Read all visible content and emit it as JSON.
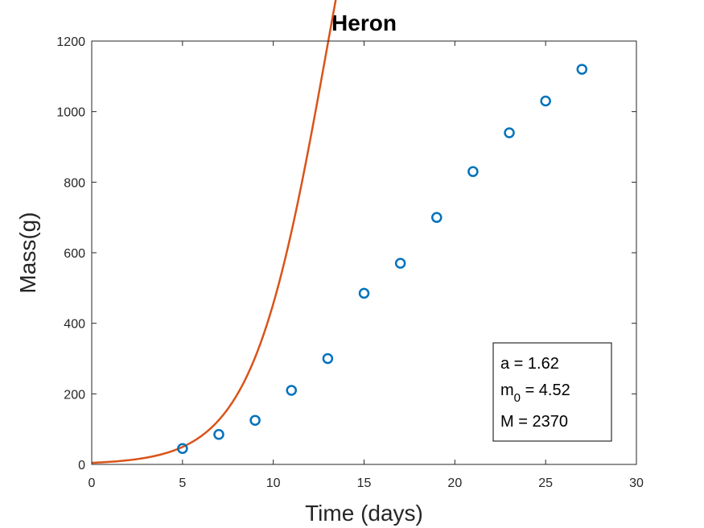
{
  "chart_data": {
    "type": "scatter",
    "title": "Heron",
    "xlabel": "Time (days)",
    "ylabel": "Mass(g)",
    "xlim": [
      0,
      30
    ],
    "ylim": [
      0,
      1200
    ],
    "xticks": [
      "0",
      "5",
      "10",
      "15",
      "20",
      "25",
      "30"
    ],
    "yticks": [
      "0",
      "200",
      "400",
      "600",
      "800",
      "1000",
      "1200"
    ],
    "grid": false,
    "series": [
      {
        "kind": "markers",
        "marker": "circle",
        "color": "#0072BD",
        "x": [
          5,
          7,
          9,
          11,
          13,
          15,
          17,
          19,
          21,
          23,
          25,
          27
        ],
        "y": [
          45,
          85,
          125,
          210,
          300,
          485,
          570,
          700,
          830,
          940,
          1030,
          1120
        ]
      },
      {
        "kind": "line",
        "color": "#D95319",
        "model": "logistic",
        "params": {
          "a": 1.62,
          "m0": 4.52,
          "M": 2370
        },
        "x_range": [
          0,
          27
        ]
      }
    ],
    "annotation": {
      "position": "bottom-right",
      "lines": [
        {
          "main": "a = 1.62"
        },
        {
          "main": "m",
          "sub": "0",
          "rest": " = 4.52"
        },
        {
          "main": "M = 2370"
        }
      ]
    }
  }
}
